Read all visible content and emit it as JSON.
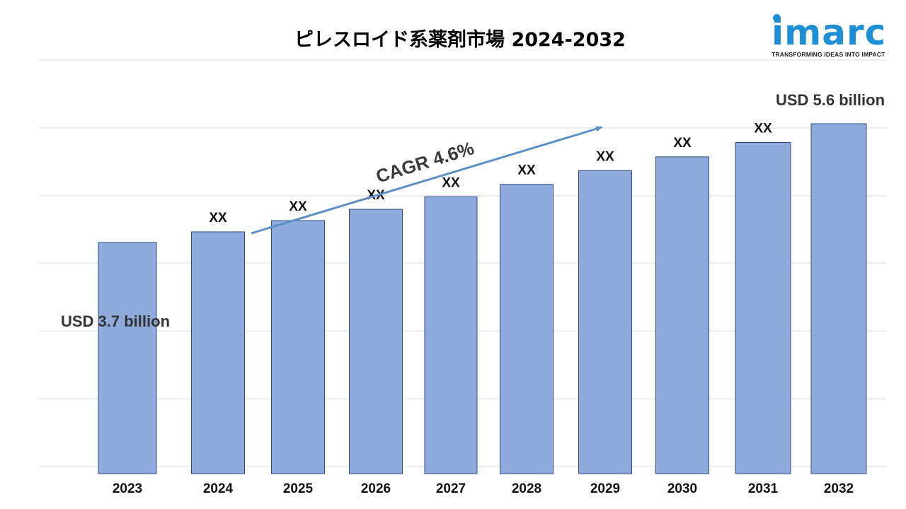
{
  "chart_data": {
    "type": "bar",
    "title": "ピレスロイド系薬剤市場 2024-2032",
    "categories": [
      "2023",
      "2024",
      "2025",
      "2026",
      "2027",
      "2028",
      "2029",
      "2030",
      "2031",
      "2032"
    ],
    "values": [
      3.7,
      3.87,
      4.05,
      4.23,
      4.43,
      4.63,
      4.85,
      5.07,
      5.3,
      5.6
    ],
    "data_labels": [
      "USD 3.7 billion",
      "XX",
      "XX",
      "XX",
      "XX",
      "XX",
      "XX",
      "XX",
      "XX",
      "USD 5.6 billion"
    ],
    "annotation": "CAGR 4.6%",
    "xlabel": "",
    "ylabel": "",
    "grid": true,
    "legend": "none",
    "bar_color": "#8faadc",
    "bar_edge_color": "#2f4f7f",
    "arrow_color": "#5b8fc5"
  },
  "logo": {
    "word": "imarc",
    "tagline": "TRANSFORMING IDEAS INTO IMPACT",
    "color": "#1e8fd6"
  }
}
